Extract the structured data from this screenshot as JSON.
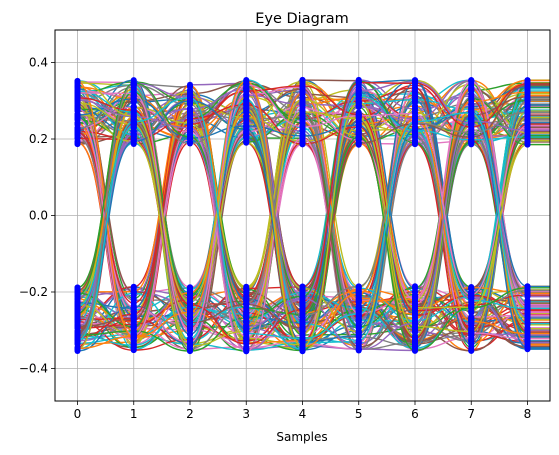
{
  "chart_data": {
    "type": "line",
    "title": "Eye Diagram",
    "xlabel": "Samples",
    "ylabel": "",
    "xlim": [
      -0.4,
      8.4
    ],
    "ylim": [
      -0.485,
      0.485
    ],
    "xticks": [
      0,
      1,
      2,
      3,
      4,
      5,
      6,
      7,
      8
    ],
    "yticks": [
      -0.4,
      -0.2,
      0.0,
      0.2,
      0.4
    ],
    "ytick_labels": [
      "−0.4",
      "−0.2",
      "0.0",
      "0.2",
      "0.4"
    ],
    "grid": true,
    "legend": "none",
    "trace_count": 180,
    "samples_per_trace": 9,
    "levels": [
      0.27,
      -0.27
    ],
    "level_jitter": 0.085,
    "marker_color": "#0000ff",
    "series_colors": [
      "#1f77b4",
      "#ff7f0e",
      "#2ca02c",
      "#d62728",
      "#9467bd",
      "#8c564b",
      "#e377c2",
      "#7f7f7f",
      "#bcbd22",
      "#17becf"
    ]
  }
}
